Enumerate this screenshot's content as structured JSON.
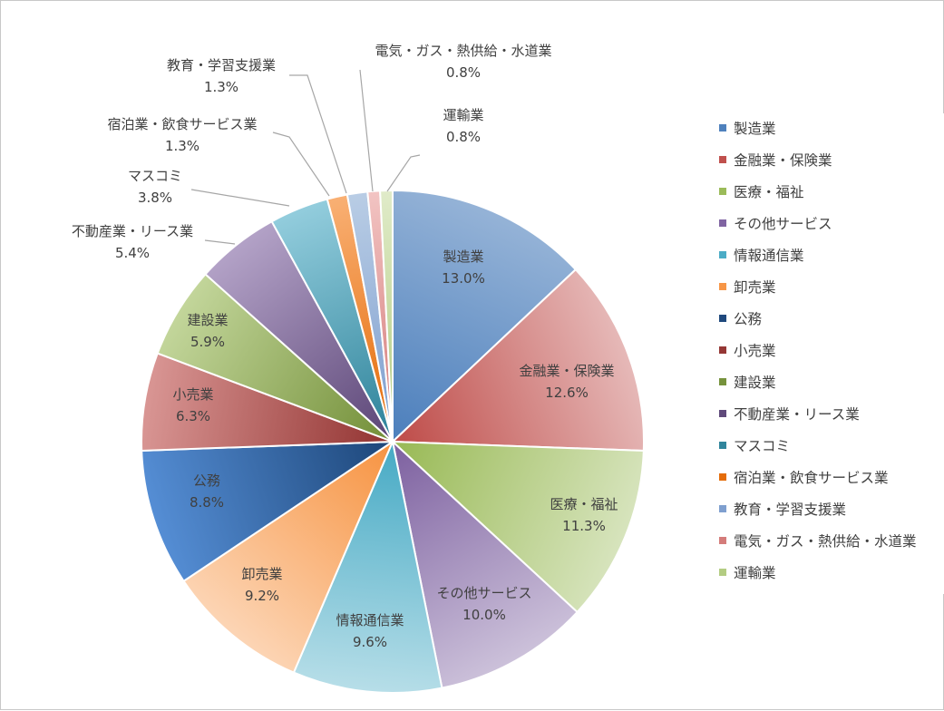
{
  "chart_data": {
    "type": "pie",
    "title": "",
    "legend_position": "right",
    "slices": [
      {
        "label": "製造業",
        "value": 13.0,
        "pct_label": "13.0%",
        "color": "#4f81bd",
        "color_light": "#95b3d7"
      },
      {
        "label": "金融業・保険業",
        "value": 12.6,
        "pct_label": "12.6%",
        "color": "#c0504d",
        "color_light": "#e6b9b8"
      },
      {
        "label": "医療・福祉",
        "value": 11.3,
        "pct_label": "11.3%",
        "color": "#9bbb59",
        "color_light": "#d7e4bd"
      },
      {
        "label": "その他サービス",
        "value": 10.0,
        "pct_label": "10.0%",
        "color": "#8064a2",
        "color_light": "#ccc1da"
      },
      {
        "label": "情報通信業",
        "value": 9.6,
        "pct_label": "9.6%",
        "color": "#4bacc6",
        "color_light": "#b7dee8"
      },
      {
        "label": "卸売業",
        "value": 9.2,
        "pct_label": "9.2%",
        "color": "#f79646",
        "color_light": "#fcd5b5"
      },
      {
        "label": "公務",
        "value": 8.8,
        "pct_label": "8.8%",
        "color": "#1f497d",
        "color_light": "#558ed5"
      },
      {
        "label": "小売業",
        "value": 6.3,
        "pct_label": "6.3%",
        "color": "#953735",
        "color_light": "#d99694"
      },
      {
        "label": "建設業",
        "value": 5.9,
        "pct_label": "5.9%",
        "color": "#76923c",
        "color_light": "#c3d69b"
      },
      {
        "label": "不動産業・リース業",
        "value": 5.4,
        "pct_label": "5.4%",
        "color": "#5f497a",
        "color_light": "#b3a2c7"
      },
      {
        "label": "マスコミ",
        "value": 3.8,
        "pct_label": "3.8%",
        "color": "#31859c",
        "color_light": "#93cddd"
      },
      {
        "label": "宿泊業・飲食サービス業",
        "value": 1.3,
        "pct_label": "1.3%",
        "color": "#e46c0a",
        "color_light": "#f9b074"
      },
      {
        "label": "教育・学習支援業",
        "value": 1.3,
        "pct_label": "1.3%",
        "color": "#7f9fcf",
        "color_light": "#b9cde5"
      },
      {
        "label": "電気・ガス・熱供給・水道業",
        "value": 0.8,
        "pct_label": "0.8%",
        "color": "#d47c7a",
        "color_light": "#f2c4c3"
      },
      {
        "label": "運輸業",
        "value": 0.8,
        "pct_label": "0.8%",
        "color": "#b3cc82",
        "color_light": "#e0ebc9"
      }
    ]
  }
}
